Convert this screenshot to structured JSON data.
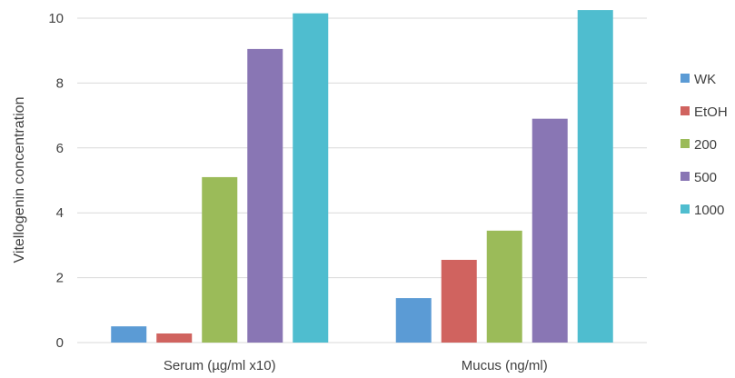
{
  "chart_data": {
    "type": "bar",
    "title": "",
    "xlabel": "",
    "ylabel": "Vitellogenin concentration",
    "ylim": [
      0,
      10
    ],
    "yticks": [
      0,
      2,
      4,
      6,
      8,
      10
    ],
    "grid": true,
    "legend_position": "right",
    "categories": [
      "Serum (µg/ml x10)",
      "Mucus (ng/ml)"
    ],
    "series": [
      {
        "name": "WK",
        "color": "#5b9bd5",
        "values": [
          0.5,
          1.37
        ]
      },
      {
        "name": "EtOH",
        "color": "#d0635f",
        "values": [
          0.28,
          2.55
        ]
      },
      {
        "name": "200",
        "color": "#9bbb59",
        "values": [
          5.1,
          3.45
        ]
      },
      {
        "name": "500",
        "color": "#8976b4",
        "values": [
          9.05,
          6.9
        ]
      },
      {
        "name": "1000",
        "color": "#4fbdcf",
        "values": [
          10.15,
          10.25
        ]
      }
    ]
  }
}
